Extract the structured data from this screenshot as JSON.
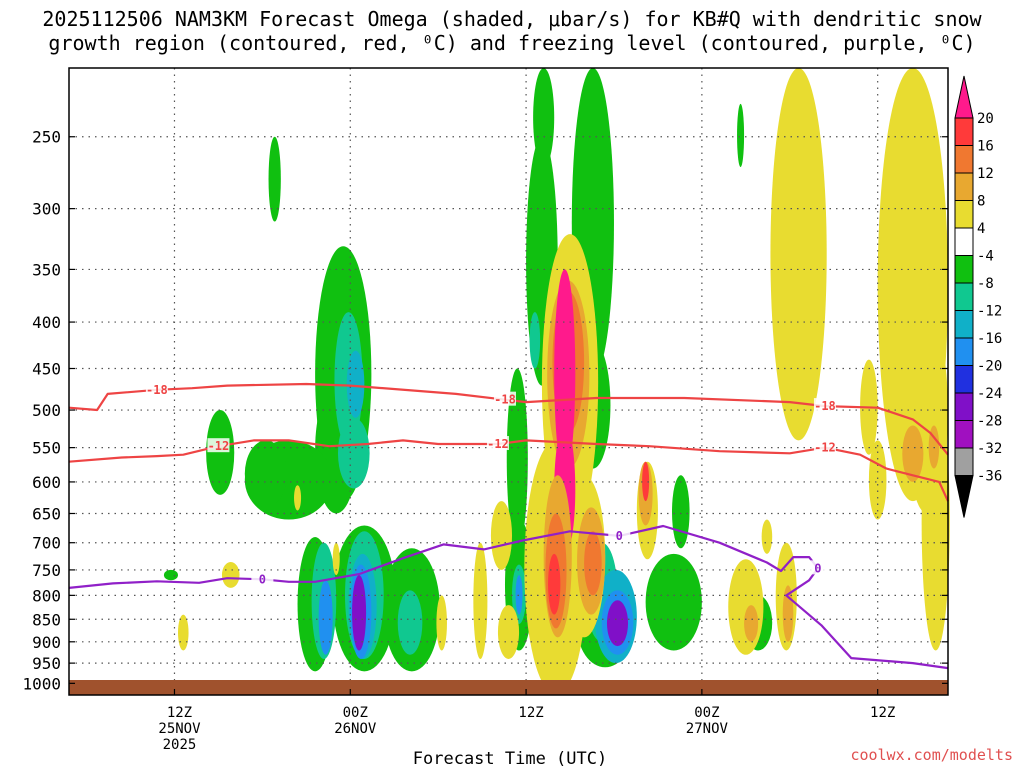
{
  "chart_data": {
    "type": "heatmap",
    "title_line1": "2025112506 NAM3KM Forecast Omega (shaded, μbar/s) for KB#Q with dendritic snow",
    "title_line2": "growth region (contoured, red, ⁰C) and freezing level (contoured, purple, ⁰C)",
    "xlabel": "Forecast Time (UTC)",
    "credit": "coolwx.com/modelts",
    "xlim_hours": [
      -6,
      44
    ],
    "ylim_hpa": [
      1030,
      210
    ],
    "y_ticks": [
      250,
      300,
      350,
      400,
      450,
      500,
      550,
      600,
      650,
      700,
      750,
      800,
      850,
      900,
      950,
      1000
    ],
    "x_ticks": [
      {
        "hour": 0,
        "lines": [
          "12Z",
          "25NOV",
          "2025"
        ]
      },
      {
        "hour": 10,
        "lines": [
          "00Z",
          "26NOV"
        ]
      },
      {
        "hour": 20,
        "lines": [
          "12Z"
        ]
      },
      {
        "hour": 30,
        "lines": [
          "00Z",
          "27NOV"
        ]
      },
      {
        "hour": 40,
        "lines": [
          "12Z"
        ]
      }
    ],
    "colorbar": {
      "labels": [
        "20",
        "16",
        "12",
        "8",
        "4",
        "-4",
        "-8",
        "-12",
        "-16",
        "-20",
        "-24",
        "-28",
        "-32",
        "-36"
      ],
      "colors_top_to_bottom": [
        "#ff1a8c",
        "#ff3a3a",
        "#f07830",
        "#e8a830",
        "#e8dc30",
        "#ffffff",
        "#10c010",
        "#10c890",
        "#10b0c8",
        "#2090f0",
        "#2030e0",
        "#8010c8",
        "#a010c0",
        "#a0a0a0",
        "#000000"
      ]
    },
    "shading": [
      {
        "level": -4,
        "color": "#10c010",
        "blobs": [
          [
            0.2,
            960,
            0.8,
            450
          ],
          [
            2.6,
            855,
            6.0,
            170
          ],
          [
            -0.1,
            1000,
            0.6,
            90
          ],
          [
            1.4,
            875,
            1.8,
            160
          ],
          [
            9.4,
            790,
            0.6,
            140
          ]
        ]
      },
      {
        "level": -4,
        "color": "#10c010",
        "blobs": [
          [
            11.8,
            900,
            5.0,
            110
          ]
        ]
      }
    ],
    "contours": [
      {
        "name": "-18",
        "color": "#ee4444",
        "label": "-18",
        "x": [
          -6,
          -4.4,
          -3.8,
          -1,
          1,
          3,
          7.5,
          10,
          16,
          18.8,
          20,
          24,
          29,
          35,
          37,
          40,
          42,
          43,
          44
        ],
        "y": [
          497,
          500,
          480,
          475,
          473,
          470,
          468,
          470,
          480,
          487,
          490,
          485,
          485,
          490,
          495,
          497,
          512,
          530,
          560
        ]
      },
      {
        "name": "-12",
        "color": "#ee4444",
        "label": "-12",
        "x": [
          -6,
          -3,
          -1,
          0.5,
          2.5,
          4.5,
          6.5,
          8.8,
          11,
          13,
          15,
          18.4,
          20,
          24,
          27,
          31,
          35,
          37,
          39,
          40.5,
          42,
          43.5,
          44
        ],
        "y": [
          570,
          564,
          562,
          560,
          548,
          540,
          540,
          548,
          545,
          540,
          545,
          545,
          540,
          545,
          548,
          555,
          558,
          550,
          560,
          580,
          590,
          600,
          630
        ]
      },
      {
        "name": "0",
        "color": "#9020c8",
        "label": "0",
        "x": [
          -6,
          -3.5,
          -1,
          1.4,
          3,
          5,
          6.5,
          8,
          10.5,
          13,
          15.3,
          17.6,
          19.8,
          22.5,
          25.3,
          27.8,
          31,
          33.7,
          34.5,
          35.2,
          36.1,
          36.6,
          36.1,
          34.8,
          36.8,
          38.5,
          42,
          44
        ],
        "y": [
          785,
          776,
          772,
          775,
          766,
          768,
          773,
          773,
          758,
          728,
          703,
          712,
          696,
          680,
          688,
          671,
          700,
          736,
          752,
          726,
          726,
          747,
          770,
          800,
          863,
          938,
          950,
          962
        ]
      }
    ]
  }
}
